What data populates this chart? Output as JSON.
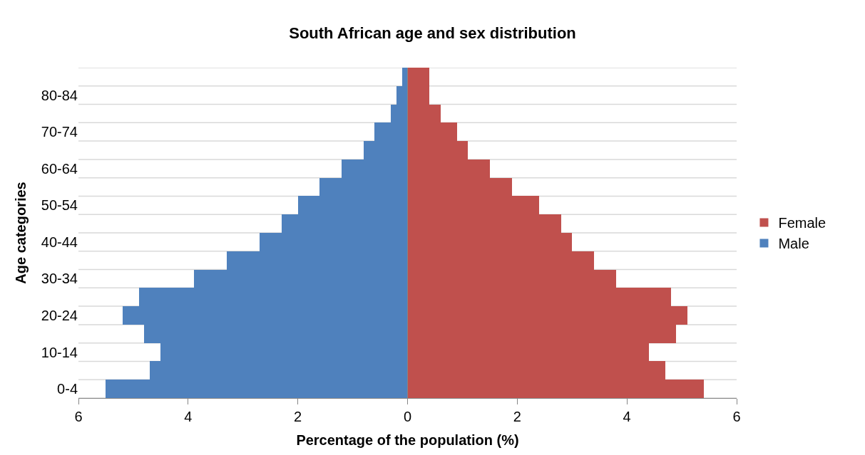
{
  "chart_data": {
    "type": "bar",
    "orientation": "horizontal",
    "title": "South African age and sex distribution",
    "xlabel": "Percentage of the population (%)",
    "ylabel": "Age categories",
    "categories": [
      null,
      "80-84",
      null,
      "70-74",
      null,
      "60-64",
      null,
      "50-54",
      null,
      "40-44",
      null,
      "30-34",
      null,
      "20-24",
      null,
      "10-14",
      null,
      "0-4"
    ],
    "series": [
      {
        "name": "Female",
        "color": "#c0504d",
        "values": [
          0.4,
          0.4,
          0.6,
          0.9,
          1.1,
          1.5,
          1.9,
          2.4,
          2.8,
          3.0,
          3.4,
          3.8,
          4.8,
          5.1,
          4.9,
          4.4,
          4.7,
          5.4
        ]
      },
      {
        "name": "Male",
        "color": "#4f81bd",
        "values": [
          -0.1,
          -0.2,
          -0.3,
          -0.6,
          -0.8,
          -1.2,
          -1.6,
          -2.0,
          -2.3,
          -2.7,
          -3.3,
          -3.9,
          -4.9,
          -5.2,
          -4.8,
          -4.5,
          -4.7,
          -5.5
        ]
      }
    ],
    "xlim": [
      -6,
      6
    ],
    "xticks": [
      {
        "value": -6,
        "label": "6"
      },
      {
        "value": -4,
        "label": "4"
      },
      {
        "value": -2,
        "label": "2"
      },
      0,
      2,
      4,
      6
    ],
    "stacked": true,
    "grid": "y",
    "legend": "right"
  }
}
